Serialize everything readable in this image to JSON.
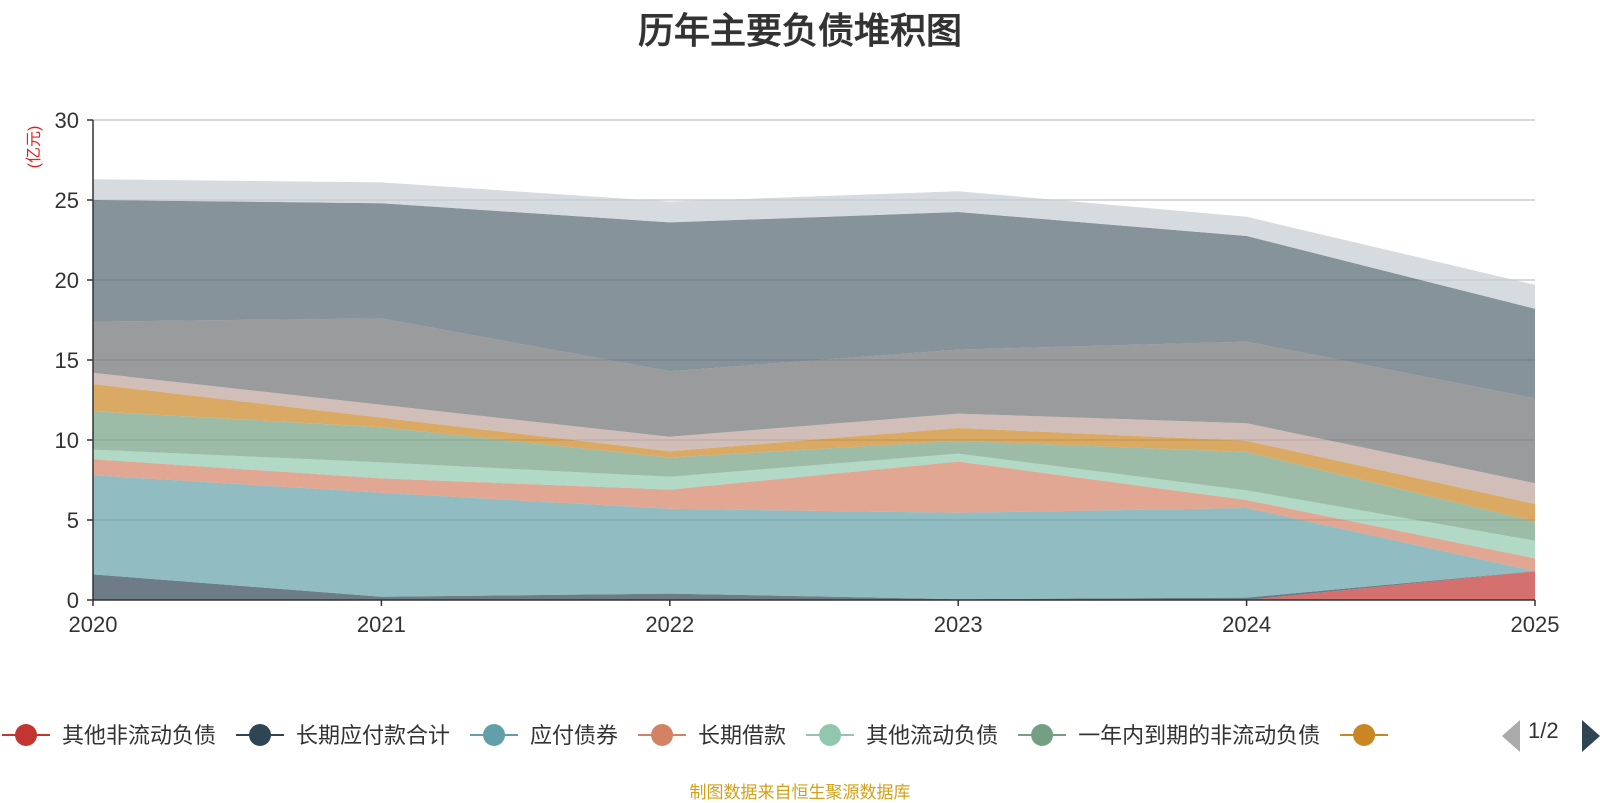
{
  "chart_data": {
    "type": "area",
    "stacked": true,
    "title": "历年主要负债堆积图",
    "ylabel": "(亿元)",
    "xlabel": "",
    "ylim": [
      0,
      30
    ],
    "yticks": [
      0,
      5,
      10,
      15,
      20,
      25,
      30
    ],
    "categories": [
      "2020",
      "2021",
      "2022",
      "2023",
      "2024",
      "2025"
    ],
    "series": [
      {
        "name": "其他非流动负债",
        "color": "#c23531",
        "values": [
          0,
          0,
          0,
          0,
          0,
          1.8
        ]
      },
      {
        "name": "长期应付款合计",
        "color": "#2f4554",
        "values": [
          1.6,
          0.2,
          0.4,
          0.05,
          0.15,
          0
        ]
      },
      {
        "name": "应付债券",
        "color": "#61a0a8",
        "values": [
          6.2,
          6.5,
          5.3,
          5.4,
          5.6,
          0
        ]
      },
      {
        "name": "长期借款",
        "color": "#d48265",
        "values": [
          1.0,
          0.9,
          1.2,
          3.2,
          0.5,
          0.8
        ]
      },
      {
        "name": "其他流动负债",
        "color": "#91c7ae",
        "values": [
          0.6,
          1.0,
          0.8,
          0.5,
          0.6,
          1.1
        ]
      },
      {
        "name": "一年内到期的非流动负债",
        "color": "#749f83",
        "values": [
          2.4,
          2.2,
          1.2,
          0.8,
          2.4,
          1.2
        ]
      },
      {
        "name": "",
        "color": "#ca8622",
        "values": [
          1.7,
          0.6,
          0.4,
          0.8,
          0.7,
          1.1
        ]
      },
      {
        "name": "",
        "color": "#bda29a",
        "values": [
          0.7,
          0.8,
          0.9,
          0.9,
          1.1,
          1.3
        ]
      },
      {
        "name": "",
        "color": "#6e7074",
        "values": [
          3.2,
          5.4,
          4.1,
          4.0,
          5.1,
          5.3
        ]
      },
      {
        "name": "",
        "color": "#546570",
        "values": [
          7.6,
          7.2,
          9.3,
          8.6,
          6.6,
          5.6
        ]
      },
      {
        "name": "",
        "color": "#c4ccd3",
        "values": [
          1.3,
          1.3,
          1.3,
          1.3,
          1.2,
          1.5
        ]
      }
    ]
  },
  "legend": {
    "page_indicator": "1/2"
  },
  "source_note": "制图数据来自恒生聚源数据库"
}
